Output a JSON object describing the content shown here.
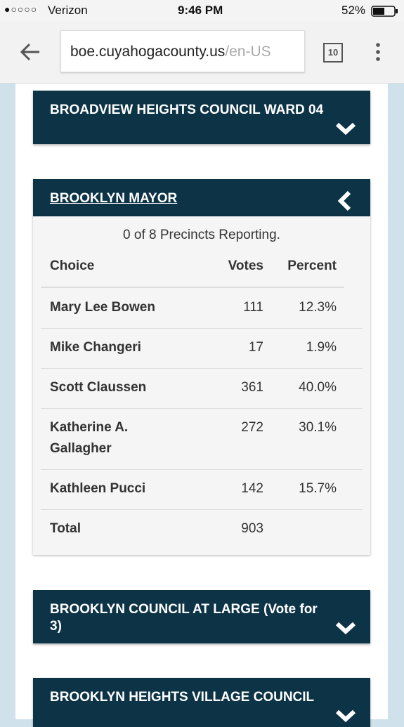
{
  "status_bar": {
    "carrier": "Verizon",
    "time": "9:46 PM",
    "battery": "52%"
  },
  "browser": {
    "url_host": "boe.cuyahogacounty.us",
    "url_path": "/en-US",
    "tab_count": "10"
  },
  "panels": [
    {
      "title": "BROADVIEW HEIGHTS COUNCIL WARD 04"
    },
    {
      "title": "BROOKLYN MAYOR",
      "precincts": "0 of 8 Precincts Reporting.",
      "table": {
        "header": [
          "Choice",
          "Votes",
          "Percent"
        ],
        "rows": [
          [
            "Mary Lee Bowen",
            "111",
            "12.3%"
          ],
          [
            "Mike Changeri",
            "17",
            "1.9%"
          ],
          [
            "Scott Claussen",
            "361",
            "40.0%"
          ],
          [
            "Katherine A. Gallagher",
            "272",
            "30.1%"
          ],
          [
            "Kathleen Pucci",
            "142",
            "15.7%"
          ]
        ],
        "total": [
          "Total",
          "903"
        ]
      }
    },
    {
      "title": "BROOKLYN COUNCIL AT LARGE (Vote for 3)"
    },
    {
      "title": "BROOKLYN HEIGHTS VILLAGE COUNCIL"
    }
  ]
}
